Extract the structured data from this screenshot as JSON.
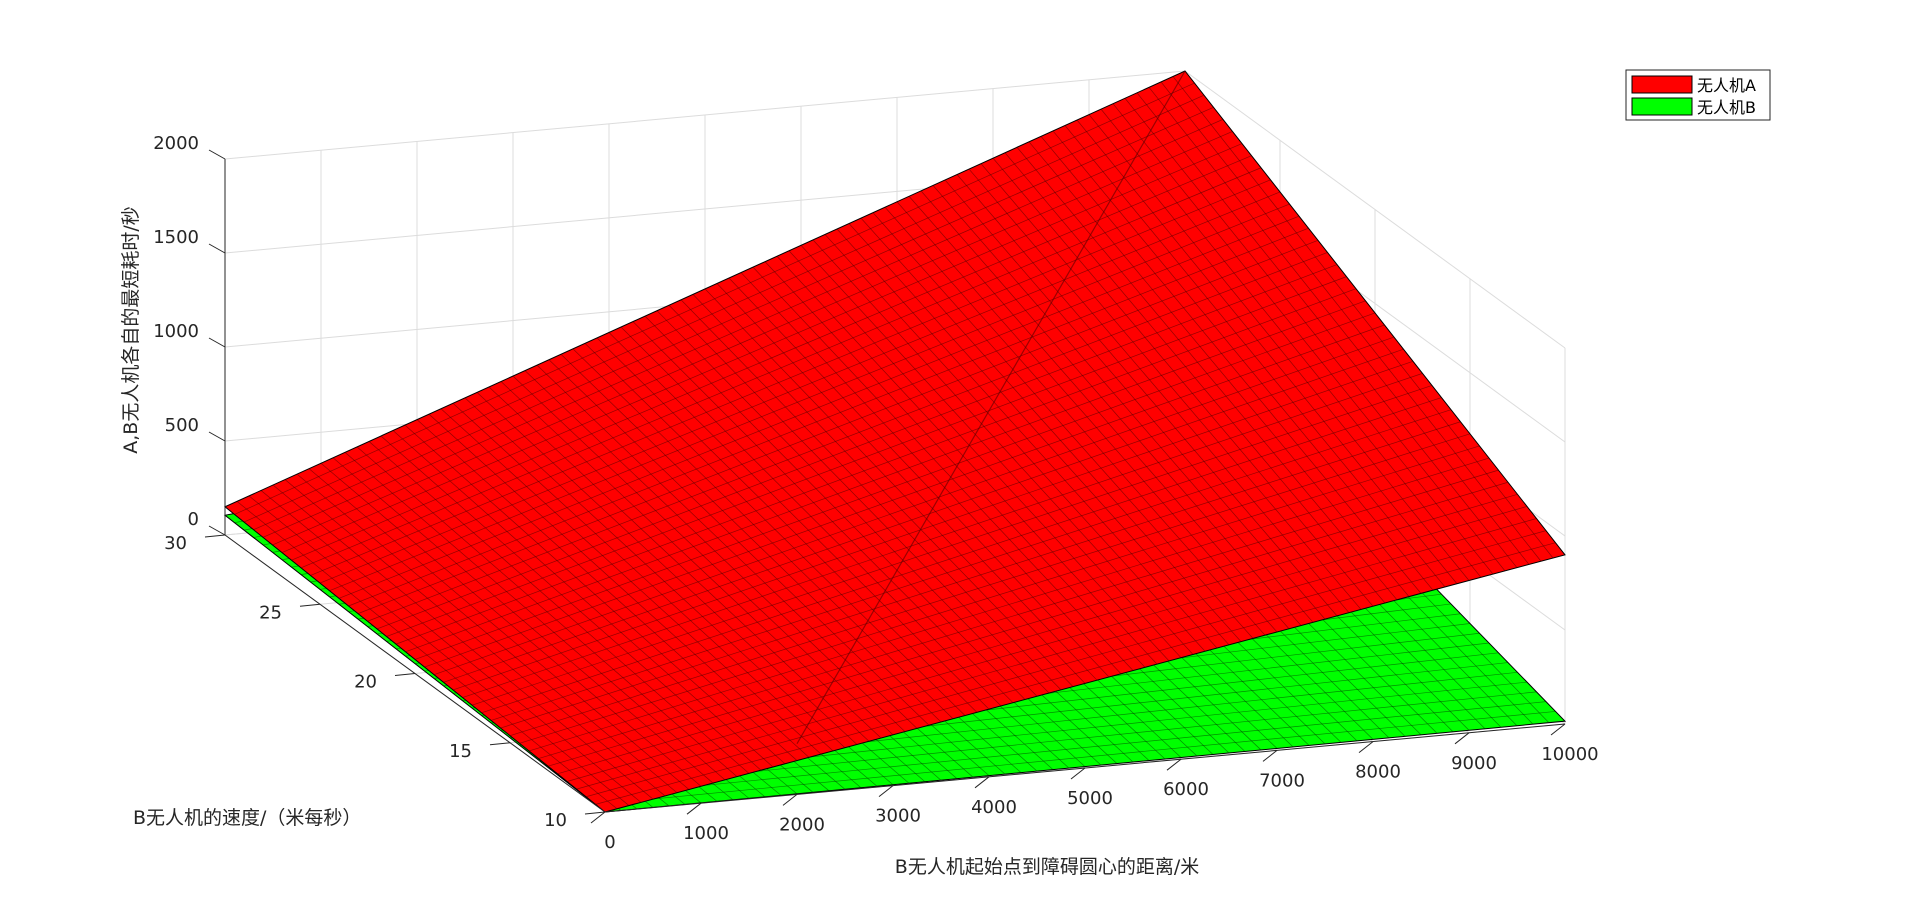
{
  "chart_data": {
    "type": "surface",
    "xlabel": "B无人机起始点到障碍圆心的距离/米",
    "ylabel": "B无人机的速度/（米每秒）",
    "zlabel": "A,B无人机各自的最短耗时/秒",
    "xlim": [
      0,
      10000
    ],
    "ylim": [
      10,
      30
    ],
    "zlim": [
      0,
      2000
    ],
    "x_ticks": [
      "0",
      "1000",
      "2000",
      "3000",
      "4000",
      "5000",
      "6000",
      "7000",
      "8000",
      "9000",
      "10000"
    ],
    "y_ticks": [
      "10",
      "15",
      "20",
      "25",
      "30"
    ],
    "z_ticks": [
      "0",
      "500",
      "1000",
      "1500",
      "2000"
    ],
    "grid": true,
    "legend_position": "top-right",
    "series": [
      {
        "name": "无人机A",
        "color": "#ff0000",
        "corners": [
          {
            "x": 0,
            "y": 10,
            "z": 0
          },
          {
            "x": 10000,
            "y": 10,
            "z": 900
          },
          {
            "x": 10000,
            "y": 30,
            "z": 2000
          },
          {
            "x": 0,
            "y": 30,
            "z": 150
          }
        ],
        "crease": [
          {
            "x": 2000,
            "y": 10,
            "z": 270
          },
          {
            "x": 10000,
            "y": 30,
            "z": 2000
          }
        ]
      },
      {
        "name": "无人机B",
        "color": "#00ff00",
        "corners": [
          {
            "x": 0,
            "y": 10,
            "z": 0
          },
          {
            "x": 10000,
            "y": 10,
            "z": 15
          },
          {
            "x": 10000,
            "y": 30,
            "z": 620
          },
          {
            "x": 0,
            "y": 30,
            "z": 105
          }
        ]
      }
    ]
  }
}
